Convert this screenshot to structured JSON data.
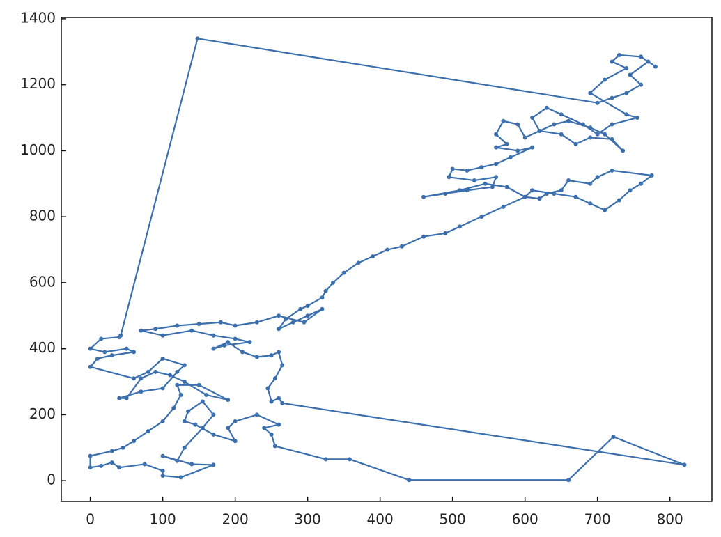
{
  "chart_data": {
    "type": "line",
    "color": "#3b6fae",
    "marker": true,
    "grid": false,
    "xlim": [
      -40,
      858
    ],
    "ylim": [
      -63,
      1404
    ],
    "xticks": [
      0,
      100,
      200,
      300,
      400,
      500,
      600,
      700,
      800
    ],
    "yticks": [
      0,
      200,
      400,
      600,
      800,
      1000,
      1200,
      1400
    ],
    "x": [
      42,
      148,
      700,
      720,
      740,
      760,
      745,
      770,
      780,
      760,
      730,
      720,
      740,
      710,
      690,
      740,
      755,
      720,
      700,
      680,
      650,
      630,
      610,
      620,
      650,
      670,
      690,
      720,
      735,
      710,
      690,
      660,
      640,
      600,
      590,
      570,
      560,
      575,
      560,
      590,
      610,
      580,
      560,
      540,
      520,
      500,
      495,
      530,
      560,
      555,
      520,
      490,
      460,
      510,
      545,
      575,
      600,
      610,
      640,
      670,
      690,
      710,
      730,
      745,
      760,
      775,
      720,
      700,
      690,
      660,
      650,
      630,
      620,
      600,
      570,
      540,
      510,
      490,
      460,
      430,
      410,
      390,
      370,
      350,
      335,
      325,
      320,
      300,
      290,
      270,
      260,
      280,
      300,
      320,
      295,
      260,
      230,
      200,
      180,
      150,
      120,
      90,
      70,
      100,
      140,
      170,
      200,
      220,
      185,
      170,
      190,
      210,
      230,
      250,
      260,
      265,
      255,
      245,
      250,
      260,
      265,
      820,
      722,
      660,
      440,
      358,
      325,
      255,
      250,
      240,
      260,
      230,
      200,
      190,
      200,
      170,
      145,
      130,
      135,
      155,
      170,
      155,
      130,
      120,
      100,
      140,
      170,
      125,
      100,
      100,
      75,
      40,
      30,
      15,
      0,
      0,
      30,
      45,
      60,
      80,
      100,
      115,
      125,
      120,
      150,
      190,
      160,
      130,
      110,
      90,
      70,
      50,
      40,
      70,
      100,
      120,
      130,
      100,
      80,
      60,
      0,
      10,
      30,
      60,
      50,
      20,
      0,
      15,
      40
    ],
    "values": [
      440,
      1340,
      1145,
      1160,
      1175,
      1200,
      1230,
      1270,
      1255,
      1285,
      1290,
      1270,
      1250,
      1215,
      1175,
      1110,
      1100,
      1080,
      1050,
      1080,
      1110,
      1130,
      1100,
      1060,
      1050,
      1020,
      1040,
      1035,
      1000,
      1050,
      1070,
      1090,
      1080,
      1040,
      1080,
      1090,
      1050,
      1020,
      1010,
      1000,
      1010,
      980,
      960,
      950,
      940,
      945,
      920,
      910,
      920,
      890,
      880,
      870,
      860,
      880,
      900,
      890,
      860,
      880,
      870,
      860,
      840,
      820,
      850,
      880,
      900,
      925,
      940,
      920,
      900,
      910,
      880,
      870,
      855,
      860,
      830,
      800,
      770,
      750,
      740,
      710,
      700,
      680,
      660,
      630,
      600,
      575,
      555,
      530,
      520,
      490,
      460,
      480,
      500,
      520,
      480,
      500,
      480,
      470,
      480,
      475,
      470,
      460,
      455,
      440,
      455,
      440,
      430,
      420,
      410,
      400,
      420,
      390,
      375,
      380,
      390,
      350,
      310,
      280,
      240,
      250,
      235,
      48,
      133,
      2,
      2,
      65,
      65,
      105,
      140,
      160,
      170,
      200,
      180,
      160,
      120,
      140,
      170,
      180,
      210,
      240,
      200,
      160,
      100,
      60,
      75,
      50,
      48,
      10,
      15,
      30,
      50,
      40,
      55,
      45,
      40,
      75,
      90,
      100,
      120,
      150,
      180,
      220,
      260,
      290,
      290,
      245,
      260,
      300,
      320,
      330,
      310,
      250,
      250,
      270,
      280,
      330,
      350,
      370,
      330,
      310,
      345,
      370,
      380,
      390,
      400,
      390,
      400,
      430,
      435
    ]
  }
}
